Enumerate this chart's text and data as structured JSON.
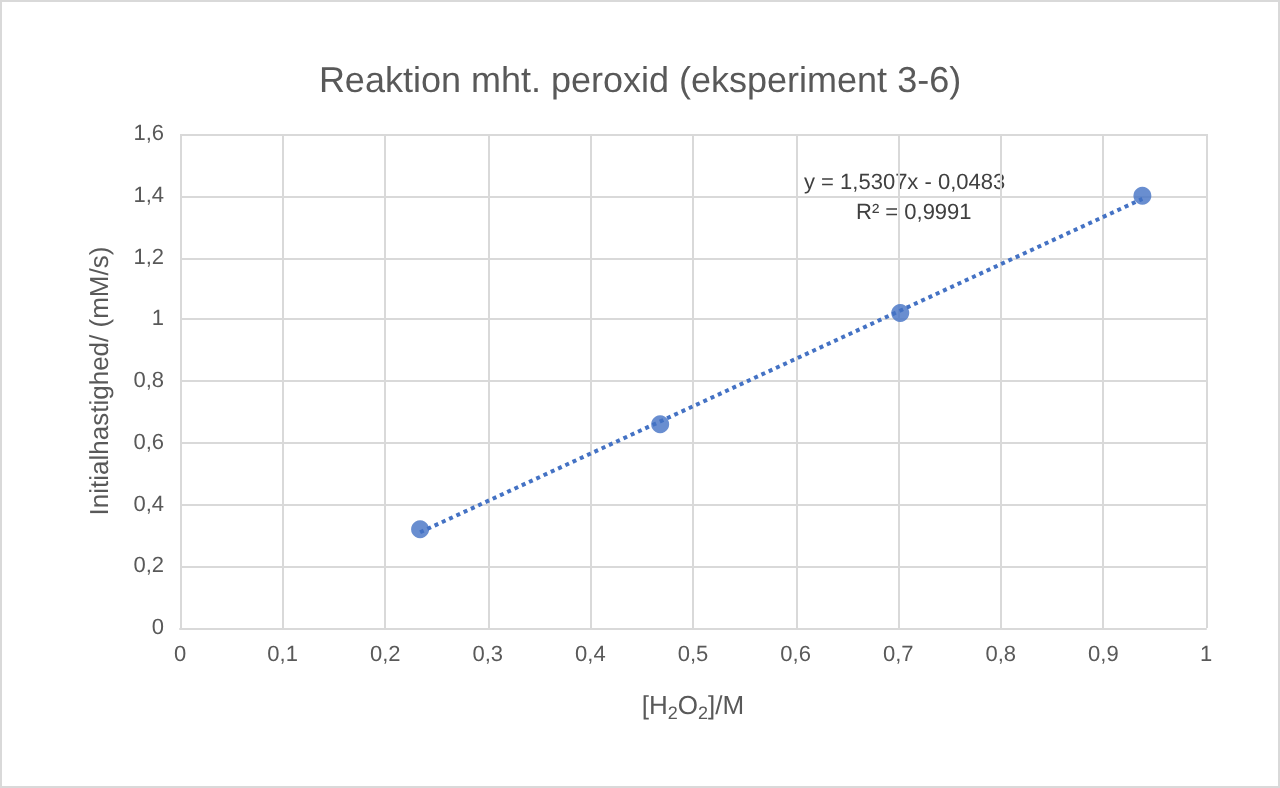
{
  "chart_data": {
    "type": "scatter",
    "title": "Reaktion mht. peroxid (eksperiment 3-6)",
    "xlabel": "[H$_{2}$O$_{2}$]/M",
    "ylabel": "Initialhastighed/ (mM/s)",
    "series": [
      {
        "color": "#4472c4",
        "x": [
          0.234,
          0.468,
          0.702,
          0.938
        ],
        "values": [
          0.32,
          0.66,
          1.02,
          1.4
        ],
        "marker": "circle"
      },
      {
        "type": "line",
        "color": "#4472c4",
        "x": [
          0.234,
          0.938
        ],
        "values": [
          0.31,
          1.39
        ],
        "line_style": "dotted",
        "marker": "none"
      }
    ],
    "annotations": [
      "y = 1,5307x - 0,0483",
      "R² = 0,9991"
    ],
    "xlim": [
      0,
      1
    ],
    "ylim": [
      0,
      1.6
    ],
    "xticks": [
      0,
      {
        "value": 0.1,
        "label": "0,1"
      },
      {
        "value": 0.2,
        "label": "0,2"
      },
      {
        "value": 0.3,
        "label": "0,3"
      },
      {
        "value": 0.4,
        "label": "0,4"
      },
      {
        "value": 0.5,
        "label": "0,5"
      },
      {
        "value": 0.6,
        "label": "0,6"
      },
      {
        "value": 0.7,
        "label": "0,7"
      },
      {
        "value": 0.8,
        "label": "0,8"
      },
      {
        "value": 0.9,
        "label": "0,9"
      },
      1
    ],
    "yticks": [
      0,
      {
        "value": 0.2,
        "label": "0,2"
      },
      {
        "value": 0.4,
        "label": "0,4"
      },
      {
        "value": 0.6,
        "label": "0,6"
      },
      {
        "value": 0.8,
        "label": "0,8"
      },
      1,
      {
        "value": 1.2,
        "label": "1,2"
      },
      {
        "value": 1.4,
        "label": "1,4"
      },
      {
        "value": 1.6,
        "label": "1,6"
      }
    ],
    "grid": true
  }
}
